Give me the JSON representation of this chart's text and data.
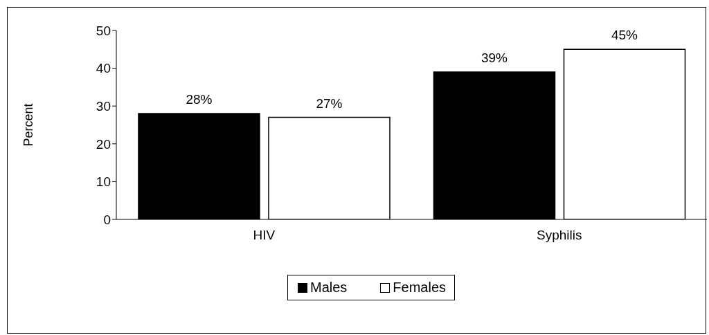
{
  "chart_data": {
    "type": "bar",
    "ylabel": "Percent",
    "categories": [
      "HIV",
      "Syphilis"
    ],
    "series": [
      {
        "name": "Males",
        "color": "#000000",
        "values": [
          28,
          39
        ],
        "value_labels": [
          "28%",
          "39%"
        ]
      },
      {
        "name": "Females",
        "color": "#ffffff",
        "values": [
          27,
          45
        ],
        "value_labels": [
          "27%",
          "45%"
        ]
      }
    ],
    "ylim": [
      0,
      50
    ],
    "yticks": [
      0,
      10,
      20,
      30,
      40,
      50
    ],
    "grid": false,
    "legend": "bottom"
  }
}
